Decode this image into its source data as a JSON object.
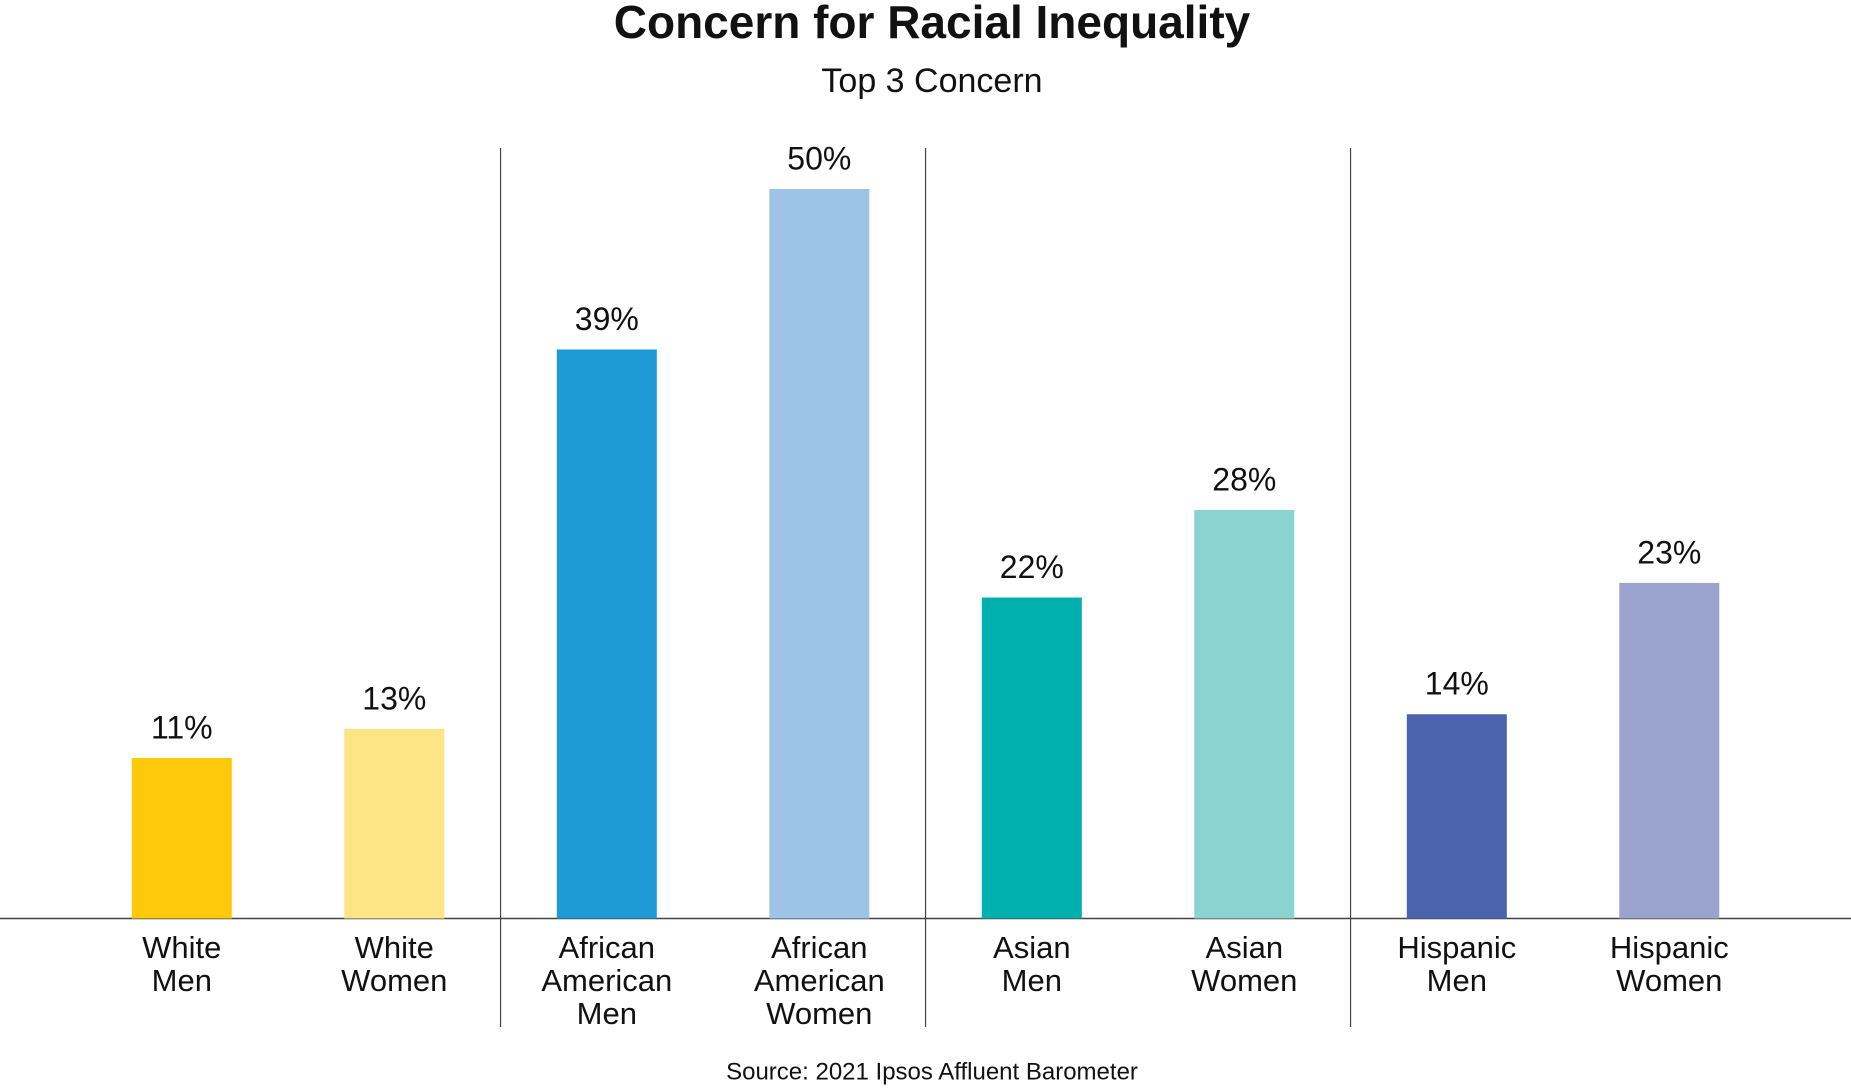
{
  "chart_data": {
    "type": "bar",
    "title": "Concern for Racial Inequality",
    "subtitle": "Top 3 Concern",
    "categories": [
      "White Men",
      "White Women",
      "African American Men",
      "African American Women",
      "Asian Men",
      "Asian Women",
      "Hispanic Men",
      "Hispanic Women"
    ],
    "values": [
      11,
      13,
      39,
      50,
      22,
      28,
      14,
      23
    ],
    "value_labels": [
      "11%",
      "13%",
      "39%",
      "50%",
      "22%",
      "28%",
      "14%",
      "23%"
    ],
    "colors": [
      "#fec90a",
      "#fde484",
      "#1e9bd6",
      "#9dc3e6",
      "#00b0ae",
      "#8bd3d1",
      "#4c63ad",
      "#9ba3cf"
    ],
    "ylim": [
      0,
      50
    ],
    "source": "Source: 2021 Ipsos Affluent Barometer"
  }
}
